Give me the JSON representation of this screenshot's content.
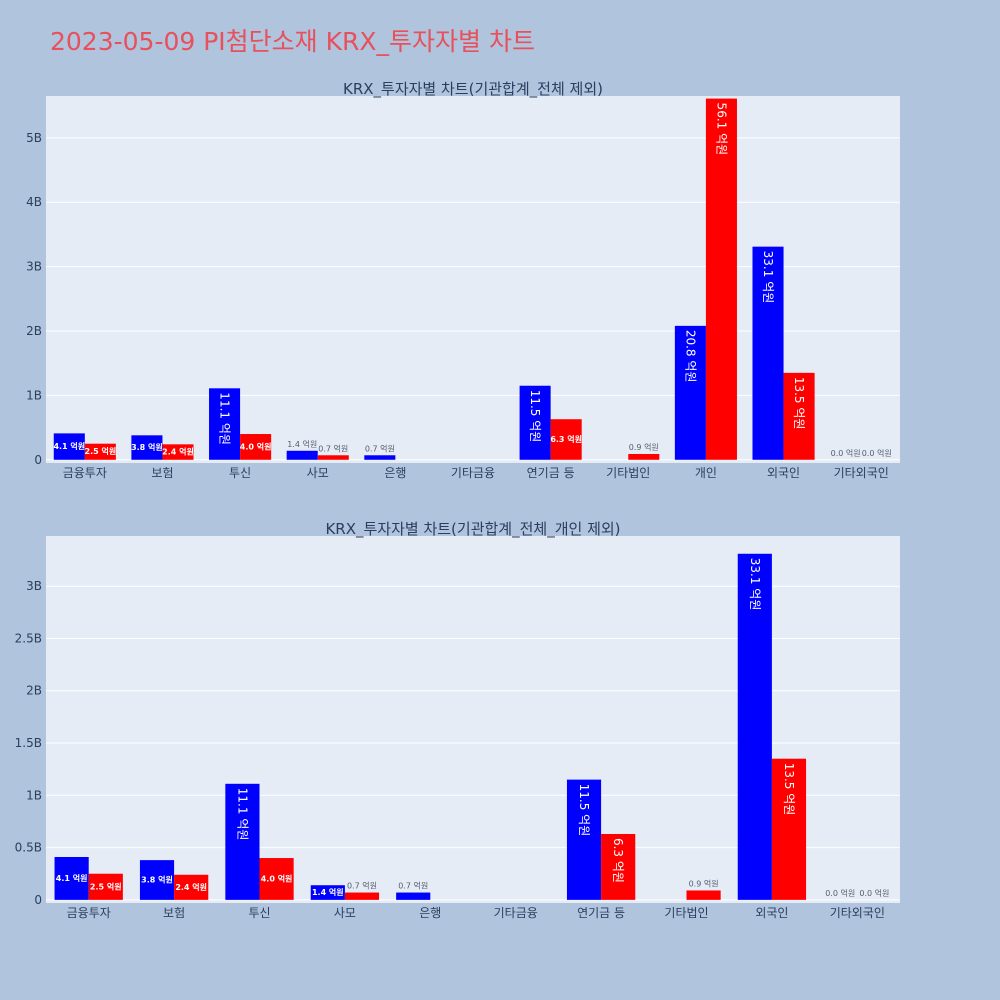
{
  "title": "2023-05-09 PI첨단소재 KRX_투자자별 차트",
  "colors": {
    "background": "#b0c4de",
    "plot_bg": "#e5ecf6",
    "title": "#e8505b",
    "series_a": "#0000ff",
    "series_b": "#ff0000",
    "text": "#2a3f5f"
  },
  "chart_data": [
    {
      "type": "bar",
      "title": "KRX_투자자별 차트(기관합계_전체 제외)",
      "categories": [
        "금융투자",
        "보험",
        "투신",
        "사모",
        "은행",
        "기타금융",
        "연기금 등",
        "기타법인",
        "개인",
        "외국인",
        "기타외국인"
      ],
      "series": [
        {
          "values": [
            410000000,
            380000000,
            1110000000,
            140000000,
            70000000,
            0,
            1150000000,
            0,
            2080000000,
            3310000000,
            0
          ],
          "labels": [
            "4.1 억원",
            "3.8 억원",
            "11.1 억원",
            "1.4 억원",
            "0.7 억원",
            "",
            "11.5 억원",
            "",
            "20.8 억원",
            "33.1 억원",
            "0.0 억원"
          ]
        },
        {
          "values": [
            250000000,
            240000000,
            400000000,
            70000000,
            0,
            0,
            630000000,
            90000000,
            5610000000,
            1350000000,
            0
          ],
          "labels": [
            "2.5 억원",
            "2.4 억원",
            "4.0 억원",
            "0.7 억원",
            "",
            "",
            "6.3 억원",
            "0.9 억원",
            "56.1 억원",
            "13.5 억원",
            "0.0 억원"
          ]
        }
      ],
      "ylim": [
        -50000000,
        5650000000
      ],
      "yticks": [
        0,
        1000000000,
        2000000000,
        3000000000,
        4000000000,
        5000000000
      ],
      "yticklabels": [
        "0",
        "1B",
        "2B",
        "3B",
        "4B",
        "5B"
      ],
      "grid": true,
      "legend": "none"
    },
    {
      "type": "bar",
      "title": "KRX_투자자별 차트(기관합계_전체_개인 제외)",
      "categories": [
        "금융투자",
        "보험",
        "투신",
        "사모",
        "은행",
        "기타금융",
        "연기금 등",
        "기타법인",
        "외국인",
        "기타외국인"
      ],
      "series": [
        {
          "values": [
            410000000,
            380000000,
            1110000000,
            140000000,
            70000000,
            0,
            1150000000,
            0,
            3310000000,
            0
          ],
          "labels": [
            "4.1 억원",
            "3.8 억원",
            "11.1 억원",
            "1.4 억원",
            "0.7 억원",
            "",
            "11.5 억원",
            "",
            "33.1 억원",
            "0.0 억원"
          ]
        },
        {
          "values": [
            250000000,
            240000000,
            400000000,
            70000000,
            0,
            0,
            630000000,
            90000000,
            1350000000,
            0
          ],
          "labels": [
            "2.5 억원",
            "2.4 억원",
            "4.0 억원",
            "0.7 억원",
            "",
            "",
            "6.3 억원",
            "0.9 억원",
            "13.5 억원",
            "0.0 억원"
          ]
        }
      ],
      "ylim": [
        -30000000,
        3480000000
      ],
      "yticks": [
        0,
        500000000,
        1000000000,
        1500000000,
        2000000000,
        2500000000,
        3000000000
      ],
      "yticklabels": [
        "0",
        "0.5B",
        "1B",
        "1.5B",
        "2B",
        "2.5B",
        "3B"
      ],
      "grid": true,
      "legend": "none"
    }
  ]
}
